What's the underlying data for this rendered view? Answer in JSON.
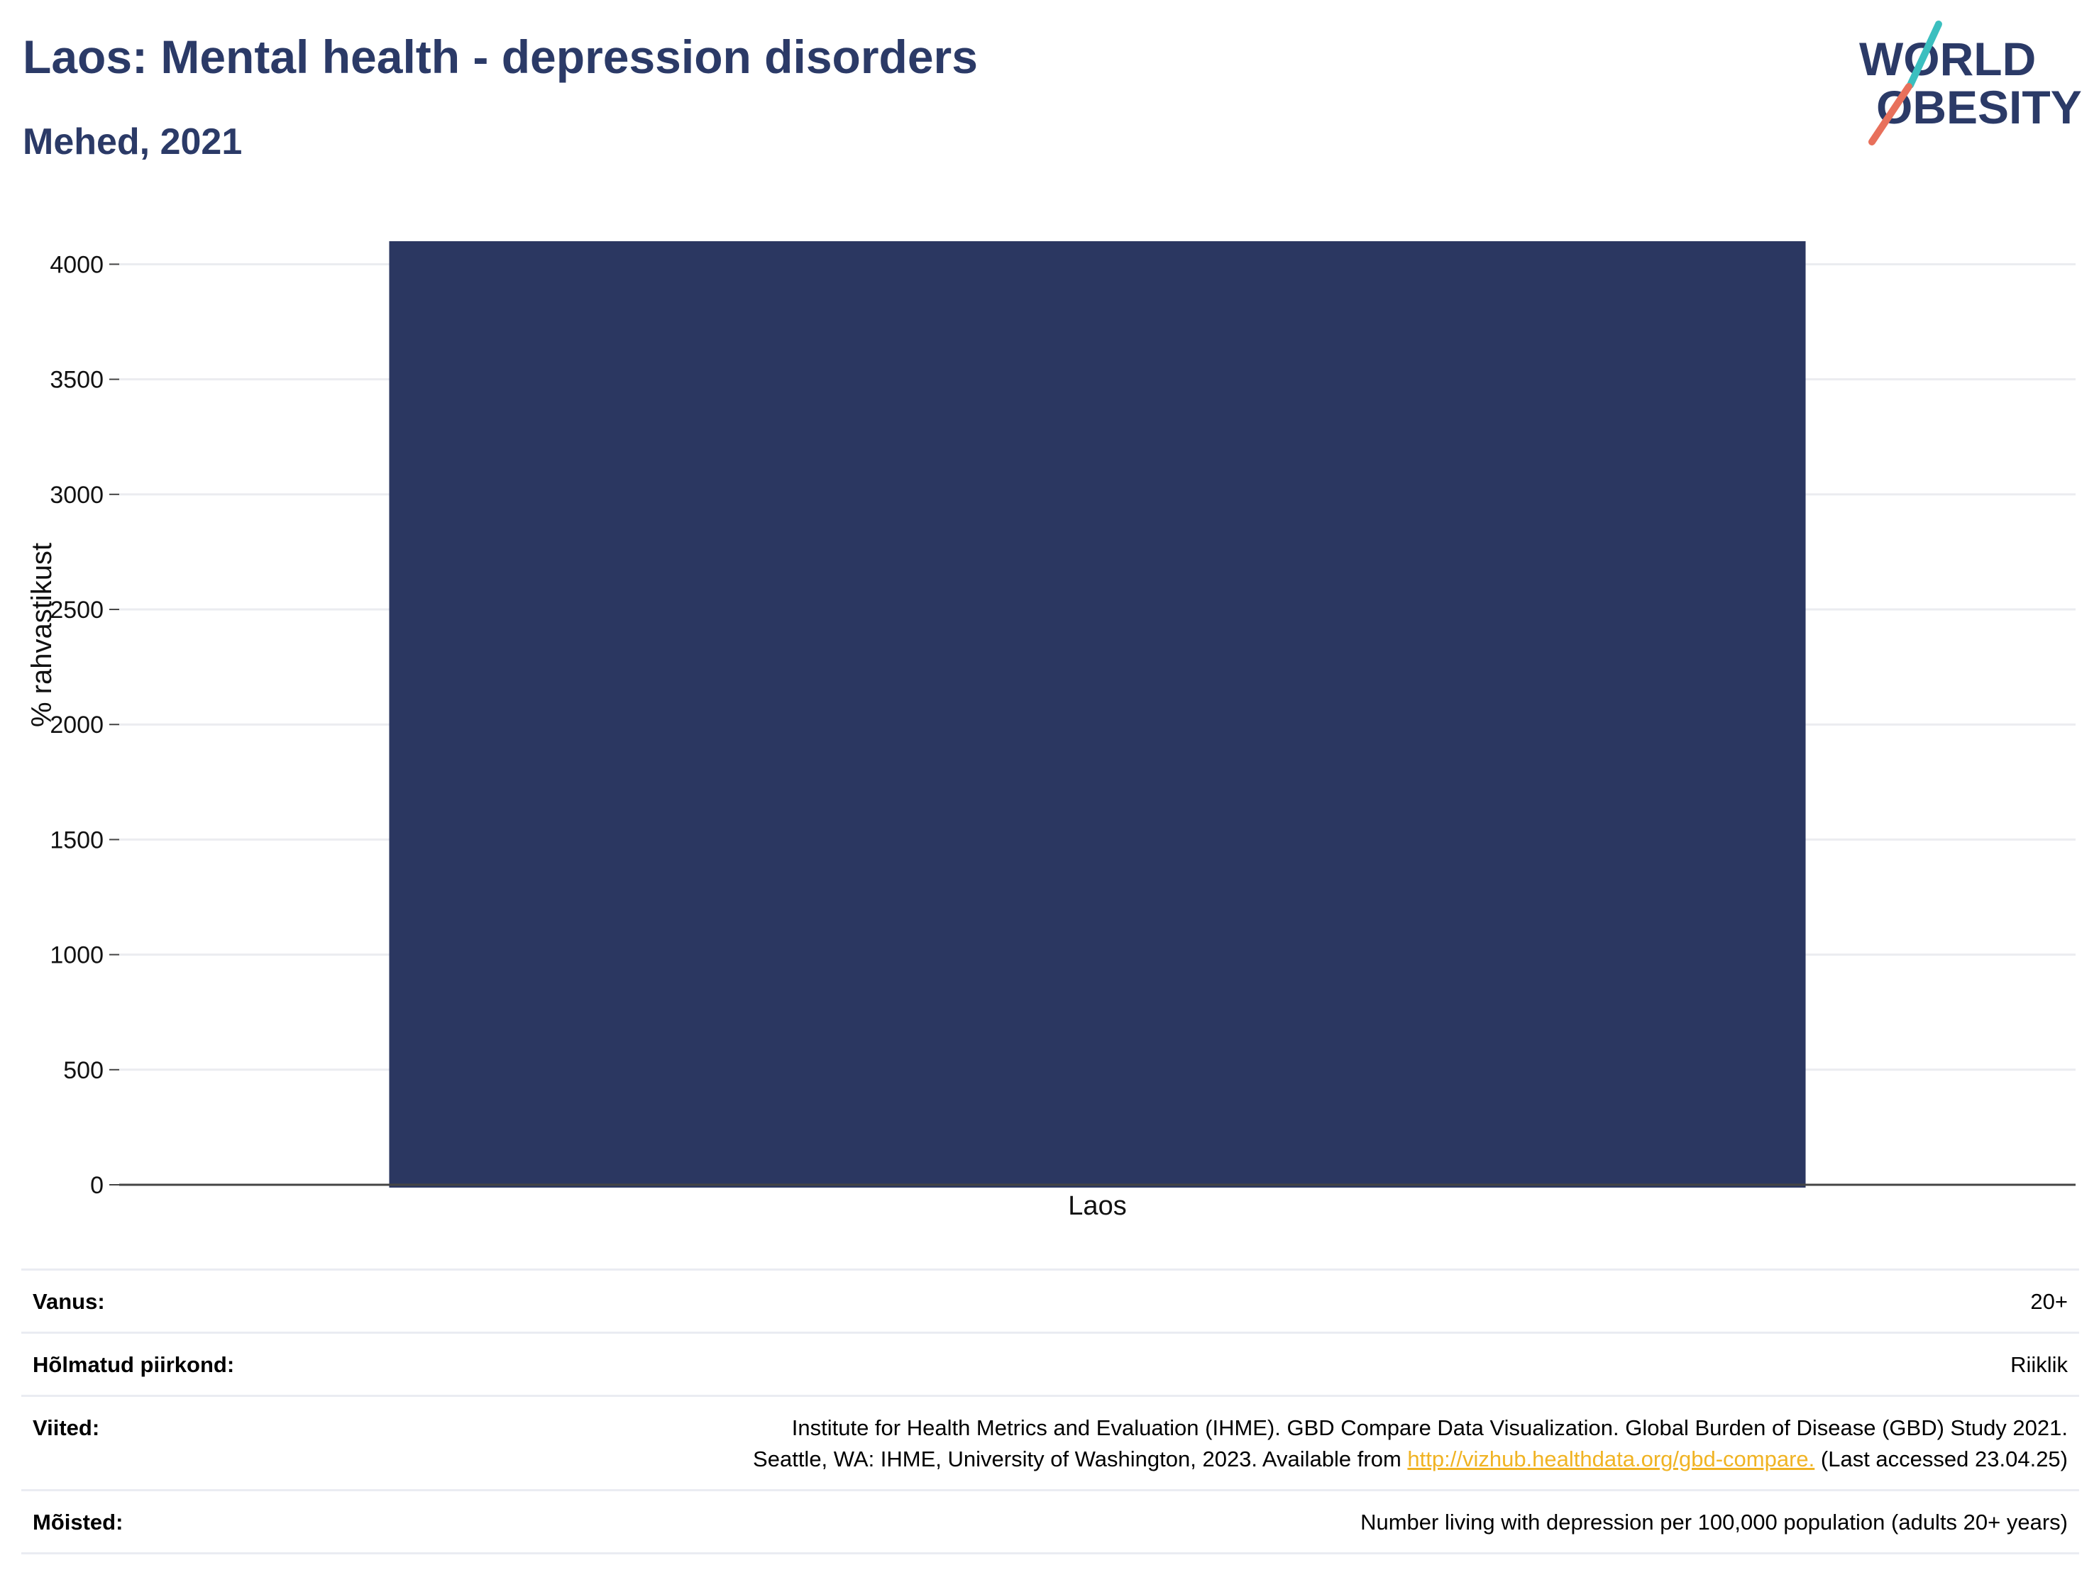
{
  "header": {
    "title": "Laos: Mental health - depression disorders",
    "subtitle": "Mehed, 2021"
  },
  "logo": {
    "line1": "WORLD",
    "line2": "OBESITY"
  },
  "colors": {
    "bar": "#2b3761",
    "title": "#2b3a67",
    "grid": "#ebecf0",
    "axis": "#444444",
    "link": "#f0b323",
    "logo_teal": "#3bbfbf",
    "logo_coral": "#e8705b"
  },
  "chart_data": {
    "type": "bar",
    "categories": [
      "Laos"
    ],
    "values": [
      4100
    ],
    "ylabel": "% rahvastikust",
    "xlabel": "",
    "ylim": [
      0,
      4100
    ],
    "yticks": [
      0,
      500,
      1000,
      1500,
      2000,
      2500,
      3000,
      3500,
      4000
    ],
    "grid": true
  },
  "meta": {
    "rows": [
      {
        "label": "Vanus:",
        "value": "20+"
      },
      {
        "label": "Hõlmatud piirkond:",
        "value": "Riiklik"
      },
      {
        "label": "Viited:",
        "value_line1": "Institute for Health Metrics and Evaluation (IHME). GBD Compare Data Visualization. Global Burden of Disease (GBD) Study 2021.",
        "value_line2_pre": "Seattle, WA: IHME, University of Washington, 2023. Available from ",
        "value_link": "http://vizhub.healthdata.org/gbd-compare.",
        "value_line2_post": " (Last accessed 23.04.25)"
      },
      {
        "label": "Mõisted:",
        "value": "Number living with depression per 100,000 population (adults 20+ years)"
      }
    ]
  }
}
